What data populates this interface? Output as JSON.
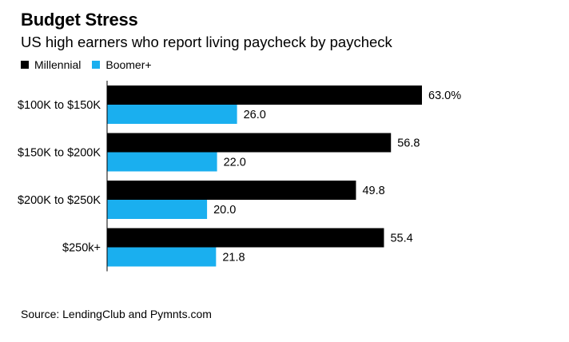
{
  "title": "Budget Stress",
  "subtitle": "US high earners who report living paycheck by paycheck",
  "source": "Source: LendingClub and Pymnts.com",
  "colors": {
    "millennial": "#000000",
    "boomer": "#1AAFEF"
  },
  "chart_data": {
    "type": "bar",
    "orientation": "horizontal",
    "categories": [
      "$100K to $150K",
      "$150K to $200K",
      "$200K to $250K",
      "$250k+"
    ],
    "series": [
      {
        "name": "Millennial",
        "values": [
          63.0,
          56.8,
          49.8,
          55.4
        ],
        "labels": [
          "63.0%",
          "56.8",
          "49.8",
          "55.4"
        ]
      },
      {
        "name": "Boomer+",
        "values": [
          26.0,
          22.0,
          20.0,
          21.8
        ],
        "labels": [
          "26.0",
          "22.0",
          "20.0",
          "21.8"
        ]
      }
    ],
    "legend": "top-left",
    "grid": false
  }
}
